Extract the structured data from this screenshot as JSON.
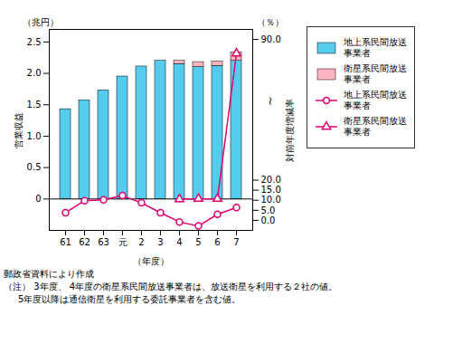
{
  "chart_data": {
    "type": "bar",
    "categories": [
      "61",
      "62",
      "63",
      "元",
      "2",
      "3",
      "4",
      "5",
      "6",
      "7"
    ],
    "series": [
      {
        "name": "地上系民間放送\n事業者",
        "type": "bar",
        "color": "#55CCEE",
        "values": [
          1.43,
          1.57,
          1.73,
          1.95,
          2.11,
          2.2,
          2.15,
          2.1,
          2.12,
          2.2
        ]
      },
      {
        "name": "衛星系民間放送\n事業者",
        "type": "bar",
        "color": "#FFB6C1",
        "values": [
          0.0,
          0.0,
          0.0,
          0.0,
          0.0,
          0.0,
          0.05,
          0.08,
          0.07,
          0.13
        ]
      },
      {
        "name": "地上系民間放送\n事業者",
        "type": "line",
        "axis": "y2",
        "color": "#E0006E",
        "marker": "circle",
        "values": [
          3.8,
          9.8,
          10.2,
          12.3,
          8.7,
          3.8,
          -0.8,
          -2.8,
          3.0,
          6.4
        ]
      },
      {
        "name": "衛星系民間放送\n事業者",
        "type": "line",
        "axis": "y2",
        "color": "#E0006E",
        "marker": "triangle",
        "values": [
          null,
          null,
          null,
          null,
          null,
          null,
          10.5,
          10.7,
          10.7,
          83.0
        ]
      }
    ],
    "stacked": true,
    "xlabel": "（年度）",
    "ylabel": "営業収益",
    "y2label": "対前年度増減率",
    "ylim": [
      -0.5,
      2.7
    ],
    "yticks": [
      0,
      0.5,
      {
        "value": 1.0,
        "label": "1.0"
      },
      1.5,
      {
        "value": 2.0,
        "label": "2.0"
      },
      2.5
    ],
    "y2lim": [
      -5.0,
      95.0
    ],
    "y2ticks": [
      {
        "value": 0.0,
        "label": "0.0"
      },
      {
        "value": 5.0,
        "label": "5.0"
      },
      {
        "value": 10.0,
        "label": "10.0"
      },
      {
        "value": 15.0,
        "label": "15.0"
      },
      {
        "value": 20.0,
        "label": "20.0"
      },
      {
        "value": 90.0,
        "label": "90.0"
      }
    ],
    "annotations": [
      "（兆円）",
      "（％）",
      "~"
    ],
    "notes": [
      "郵政省資料により作成",
      "（注） 3年度、 4年度の衛星系民間放送事業者は、放送衛星を利用する２社の値。",
      "     5年度以降は通信衛星を利用する委託事業者を含む値。"
    ],
    "legend": "right"
  }
}
